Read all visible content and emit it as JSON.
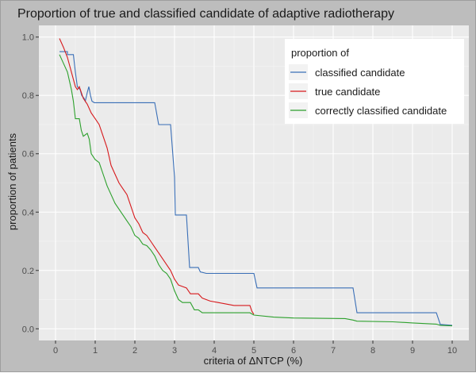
{
  "chart_data": {
    "type": "line",
    "title": "Proportion of true and classified candidate of adaptive radiotherapy",
    "xlabel": "criteria of ΔNTCP (%)",
    "ylabel": "proportion of patients",
    "xlim": [
      -0.42,
      10.42
    ],
    "ylim": [
      -0.04,
      1.04
    ],
    "x_ticks": [
      0,
      1,
      2,
      3,
      4,
      5,
      6,
      7,
      8,
      9,
      10
    ],
    "x_tick_labels": [
      "0",
      "1",
      "2",
      "3",
      "4",
      "5",
      "6",
      "7",
      "8",
      "9",
      "10"
    ],
    "y_ticks": [
      0.0,
      0.2,
      0.4,
      0.6,
      0.8,
      1.0
    ],
    "y_tick_labels": [
      "0.0",
      "0.2",
      "0.4",
      "0.6",
      "0.8",
      "1.0"
    ],
    "grid": true,
    "legend": {
      "title": "proportion of",
      "position": "top-right"
    },
    "series": [
      {
        "name": "classified candidate",
        "color": "#3a6fb7",
        "points": [
          [
            0.1,
            0.95
          ],
          [
            0.3,
            0.95
          ],
          [
            0.3,
            0.94
          ],
          [
            0.45,
            0.94
          ],
          [
            0.5,
            0.88
          ],
          [
            0.55,
            0.83
          ],
          [
            0.62,
            0.82
          ],
          [
            0.66,
            0.8
          ],
          [
            0.72,
            0.79
          ],
          [
            0.75,
            0.78
          ],
          [
            0.8,
            0.81
          ],
          [
            0.84,
            0.83
          ],
          [
            0.88,
            0.8
          ],
          [
            0.92,
            0.78
          ],
          [
            0.98,
            0.775
          ],
          [
            1.05,
            0.775
          ],
          [
            2.5,
            0.775
          ],
          [
            2.6,
            0.7
          ],
          [
            2.9,
            0.7
          ],
          [
            3.0,
            0.52
          ],
          [
            3.02,
            0.39
          ],
          [
            3.3,
            0.39
          ],
          [
            3.38,
            0.21
          ],
          [
            3.6,
            0.21
          ],
          [
            3.65,
            0.195
          ],
          [
            3.8,
            0.19
          ],
          [
            5.0,
            0.19
          ],
          [
            5.08,
            0.14
          ],
          [
            7.5,
            0.14
          ],
          [
            7.6,
            0.055
          ],
          [
            9.6,
            0.055
          ],
          [
            9.7,
            0.015
          ],
          [
            10.0,
            0.012
          ]
        ]
      },
      {
        "name": "true candidate",
        "color": "#d7191c",
        "points": [
          [
            0.1,
            0.995
          ],
          [
            0.2,
            0.965
          ],
          [
            0.3,
            0.93
          ],
          [
            0.4,
            0.88
          ],
          [
            0.5,
            0.83
          ],
          [
            0.55,
            0.82
          ],
          [
            0.6,
            0.83
          ],
          [
            0.65,
            0.81
          ],
          [
            0.7,
            0.79
          ],
          [
            0.8,
            0.77
          ],
          [
            0.9,
            0.74
          ],
          [
            1.0,
            0.72
          ],
          [
            1.1,
            0.7
          ],
          [
            1.2,
            0.66
          ],
          [
            1.3,
            0.62
          ],
          [
            1.4,
            0.56
          ],
          [
            1.5,
            0.53
          ],
          [
            1.6,
            0.5
          ],
          [
            1.7,
            0.48
          ],
          [
            1.8,
            0.46
          ],
          [
            1.9,
            0.42
          ],
          [
            2.0,
            0.38
          ],
          [
            2.1,
            0.36
          ],
          [
            2.2,
            0.33
          ],
          [
            2.3,
            0.32
          ],
          [
            2.4,
            0.3
          ],
          [
            2.5,
            0.28
          ],
          [
            2.6,
            0.26
          ],
          [
            2.7,
            0.24
          ],
          [
            2.8,
            0.22
          ],
          [
            2.9,
            0.2
          ],
          [
            3.0,
            0.17
          ],
          [
            3.1,
            0.15
          ],
          [
            3.2,
            0.145
          ],
          [
            3.3,
            0.14
          ],
          [
            3.4,
            0.12
          ],
          [
            3.6,
            0.12
          ],
          [
            3.7,
            0.105
          ],
          [
            3.9,
            0.095
          ],
          [
            4.1,
            0.09
          ],
          [
            4.3,
            0.085
          ],
          [
            4.5,
            0.08
          ],
          [
            4.9,
            0.08
          ],
          [
            4.95,
            0.06
          ],
          [
            5.0,
            0.05
          ]
        ]
      },
      {
        "name": "correctly classified candidate",
        "color": "#2ca02c",
        "points": [
          [
            0.1,
            0.94
          ],
          [
            0.2,
            0.91
          ],
          [
            0.3,
            0.88
          ],
          [
            0.4,
            0.82
          ],
          [
            0.45,
            0.78
          ],
          [
            0.5,
            0.72
          ],
          [
            0.6,
            0.72
          ],
          [
            0.65,
            0.68
          ],
          [
            0.7,
            0.66
          ],
          [
            0.8,
            0.67
          ],
          [
            0.85,
            0.65
          ],
          [
            0.9,
            0.6
          ],
          [
            1.0,
            0.58
          ],
          [
            1.1,
            0.57
          ],
          [
            1.2,
            0.53
          ],
          [
            1.3,
            0.49
          ],
          [
            1.4,
            0.46
          ],
          [
            1.5,
            0.43
          ],
          [
            1.6,
            0.41
          ],
          [
            1.7,
            0.39
          ],
          [
            1.8,
            0.37
          ],
          [
            1.9,
            0.35
          ],
          [
            2.0,
            0.32
          ],
          [
            2.1,
            0.31
          ],
          [
            2.2,
            0.29
          ],
          [
            2.3,
            0.285
          ],
          [
            2.4,
            0.27
          ],
          [
            2.5,
            0.25
          ],
          [
            2.6,
            0.22
          ],
          [
            2.7,
            0.2
          ],
          [
            2.8,
            0.19
          ],
          [
            2.9,
            0.17
          ],
          [
            3.0,
            0.13
          ],
          [
            3.1,
            0.1
          ],
          [
            3.2,
            0.09
          ],
          [
            3.4,
            0.09
          ],
          [
            3.5,
            0.065
          ],
          [
            3.6,
            0.065
          ],
          [
            3.7,
            0.055
          ],
          [
            4.9,
            0.055
          ],
          [
            5.0,
            0.047
          ],
          [
            5.5,
            0.04
          ],
          [
            6.0,
            0.037
          ],
          [
            7.3,
            0.035
          ],
          [
            7.5,
            0.03
          ],
          [
            7.6,
            0.026
          ],
          [
            8.5,
            0.024
          ],
          [
            9.0,
            0.02
          ],
          [
            9.6,
            0.016
          ],
          [
            9.7,
            0.012
          ],
          [
            10.0,
            0.01
          ]
        ]
      }
    ]
  },
  "colors": {
    "outer_background": "#bdbdbd",
    "panel_background": "#ebebeb",
    "grid_major": "#ffffff",
    "grid_minor": "#f5f5f5"
  }
}
